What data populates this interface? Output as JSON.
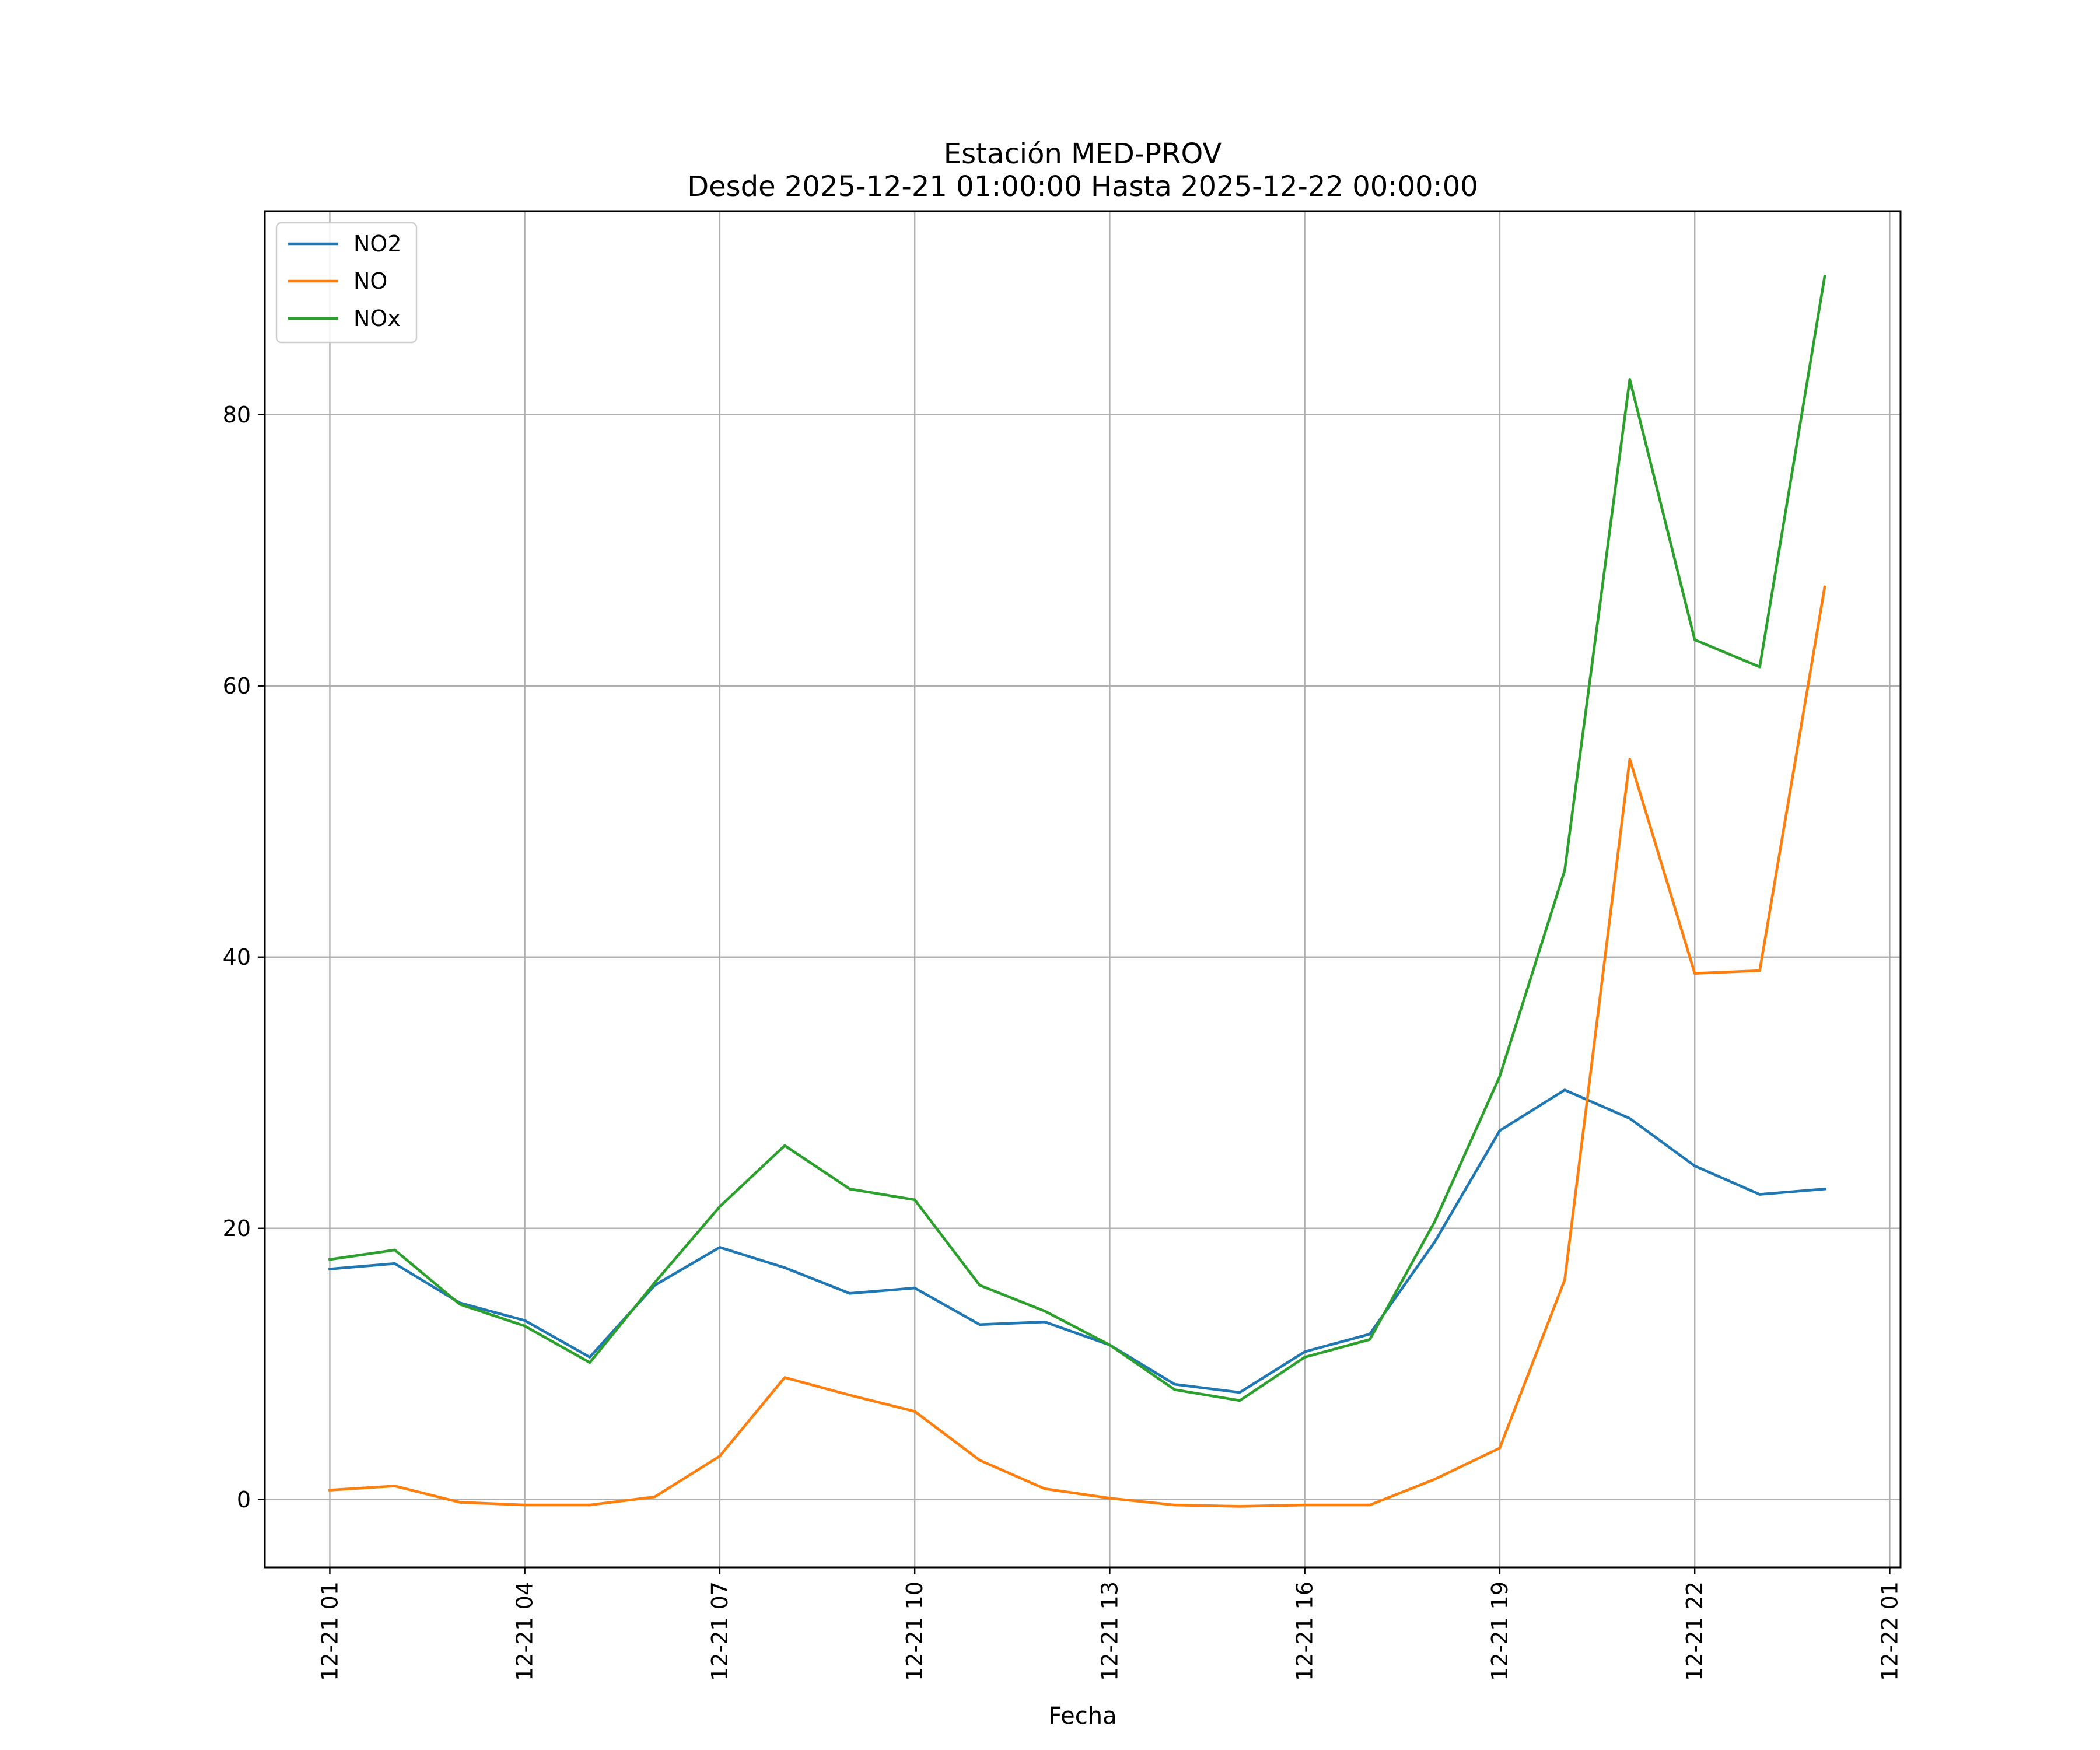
{
  "chart_data": {
    "type": "line",
    "title": "Estación MED-PROV",
    "subtitle": "Desde 2025-12-21 01:00:00 Hasta 2025-12-22 00:00:00",
    "xlabel": "Fecha",
    "ylabel": "",
    "x": [
      "2025-12-21 01:00",
      "2025-12-21 02:00",
      "2025-12-21 03:00",
      "2025-12-21 04:00",
      "2025-12-21 05:00",
      "2025-12-21 06:00",
      "2025-12-21 07:00",
      "2025-12-21 08:00",
      "2025-12-21 09:00",
      "2025-12-21 10:00",
      "2025-12-21 11:00",
      "2025-12-21 12:00",
      "2025-12-21 13:00",
      "2025-12-21 14:00",
      "2025-12-21 15:00",
      "2025-12-21 16:00",
      "2025-12-21 17:00",
      "2025-12-21 18:00",
      "2025-12-21 19:00",
      "2025-12-21 20:00",
      "2025-12-21 21:00",
      "2025-12-21 22:00",
      "2025-12-21 23:00",
      "2025-12-22 00:00"
    ],
    "xlim": [
      "2025-12-21 00:00",
      "2025-12-22 01:10"
    ],
    "ylim": [
      -5,
      95
    ],
    "x_ticks": [
      {
        "label": "12-21 01",
        "at": "2025-12-21 01:00"
      },
      {
        "label": "12-21 04",
        "at": "2025-12-21 04:00"
      },
      {
        "label": "12-21 07",
        "at": "2025-12-21 07:00"
      },
      {
        "label": "12-21 10",
        "at": "2025-12-21 10:00"
      },
      {
        "label": "12-21 13",
        "at": "2025-12-21 13:00"
      },
      {
        "label": "12-21 16",
        "at": "2025-12-21 16:00"
      },
      {
        "label": "12-21 19",
        "at": "2025-12-21 19:00"
      },
      {
        "label": "12-21 22",
        "at": "2025-12-21 22:00"
      },
      {
        "label": "12-22 01",
        "at": "2025-12-22 01:00"
      }
    ],
    "y_ticks": [
      0,
      20,
      40,
      60,
      80
    ],
    "grid": true,
    "legend": "upper-left",
    "series": [
      {
        "name": "NO2",
        "color": "#1f77b4",
        "values": [
          17.0,
          17.4,
          14.5,
          13.2,
          10.5,
          15.8,
          18.6,
          17.1,
          15.2,
          15.6,
          12.9,
          13.1,
          11.4,
          8.5,
          7.9,
          10.9,
          12.2,
          19.0,
          27.2,
          30.2,
          28.1,
          24.6,
          22.5,
          22.9
        ]
      },
      {
        "name": "NO",
        "color": "#ff7f0e",
        "values": [
          0.7,
          1.0,
          -0.2,
          -0.4,
          -0.4,
          0.2,
          3.2,
          9.0,
          7.7,
          6.5,
          2.9,
          0.8,
          0.1,
          -0.4,
          -0.5,
          -0.4,
          -0.4,
          1.5,
          3.8,
          16.2,
          54.6,
          38.8,
          39.0,
          67.3
        ]
      },
      {
        "name": "NOx",
        "color": "#2ca02c",
        "values": [
          17.7,
          18.4,
          14.4,
          12.8,
          10.1,
          16.0,
          21.6,
          26.1,
          22.9,
          22.1,
          15.8,
          13.9,
          11.4,
          8.1,
          7.3,
          10.5,
          11.8,
          20.5,
          31.2,
          46.4,
          82.6,
          63.4,
          61.4,
          90.2
        ]
      }
    ]
  }
}
